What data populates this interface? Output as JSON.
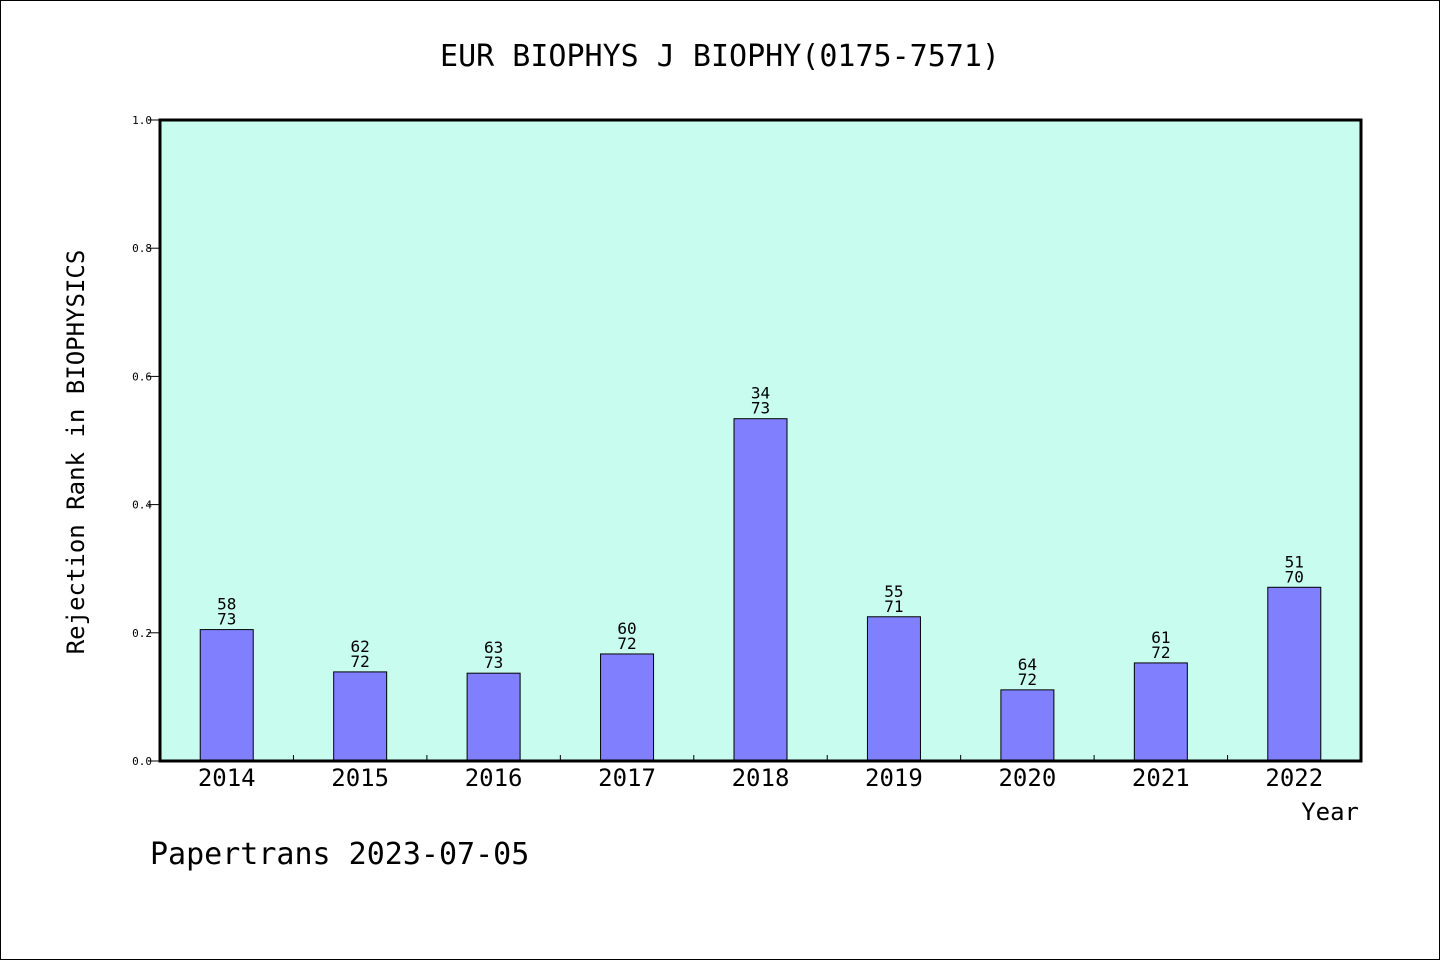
{
  "chart_data": {
    "type": "bar",
    "title": "EUR BIOPHYS J BIOPHY(0175-7571)",
    "xlabel": "Year",
    "ylabel": "Rejection Rank in BIOPHYSICS",
    "categories": [
      "2014",
      "2015",
      "2016",
      "2017",
      "2018",
      "2019",
      "2020",
      "2021",
      "2022"
    ],
    "values": [
      0.205,
      0.139,
      0.137,
      0.167,
      0.534,
      0.225,
      0.111,
      0.153,
      0.271
    ],
    "data_labels": [
      [
        "58",
        "73"
      ],
      [
        "62",
        "72"
      ],
      [
        "63",
        "73"
      ],
      [
        "60",
        "72"
      ],
      [
        "34",
        "73"
      ],
      [
        "55",
        "71"
      ],
      [
        "64",
        "72"
      ],
      [
        "61",
        "72"
      ],
      [
        "51",
        "70"
      ]
    ],
    "ylim": [
      0,
      1.0
    ],
    "yticks": [
      "0.0",
      "0.2",
      "0.4",
      "0.6",
      "0.8",
      "1.0"
    ],
    "grid": false,
    "colors": {
      "plot_background": "#c8fcee",
      "bar_fill": "#8080ff",
      "bar_stroke": "#000000"
    }
  },
  "footer": "Papertrans 2023-07-05"
}
